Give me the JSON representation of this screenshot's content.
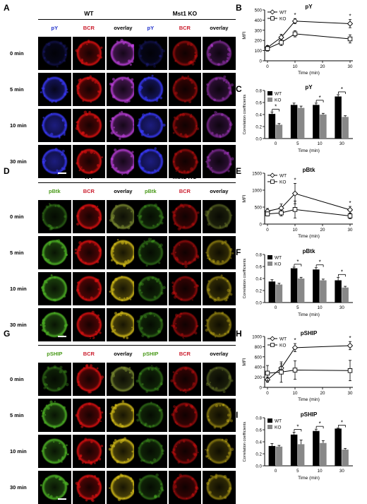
{
  "panels": [
    {
      "letter": "A",
      "groups": [
        {
          "title": "WT",
          "cols": [
            "pY",
            "BCR",
            "overlay"
          ]
        },
        {
          "title": "Mst1 KO",
          "cols": [
            "pY",
            "BCR",
            "overlay"
          ]
        }
      ],
      "rows": [
        "0 min",
        "5 min",
        "10 min",
        "30 min"
      ],
      "stain_color": "#3a3aff"
    },
    {
      "letter": "D",
      "groups": [
        {
          "title": "WT",
          "cols": [
            "pBtk",
            "BCR",
            "overlay"
          ]
        },
        {
          "title": "Mst1 KO",
          "cols": [
            "pBtk",
            "BCR",
            "overlay"
          ]
        }
      ],
      "rows": [
        "0 min",
        "5 min",
        "10 min",
        "30 min"
      ],
      "stain_color": "#4caf24"
    },
    {
      "letter": "G",
      "groups": [
        {
          "title": "WT",
          "cols": [
            "pSHIP",
            "BCR",
            "overlay"
          ]
        },
        {
          "title": "Mst1 KO",
          "cols": [
            "pSHIP",
            "BCR",
            "overlay"
          ]
        }
      ],
      "rows": [
        "0 min",
        "5 min",
        "10 min",
        "30 min"
      ],
      "stain_color": "#4caf24"
    }
  ],
  "colors": {
    "header_blue": "#2233cc",
    "header_green": "#4a9a1a",
    "header_red": "#cc1f2f",
    "bcr_red": "#e01010",
    "wt_bar": "#000000",
    "ko_bar": "#888888"
  },
  "chart_data": [
    {
      "letter": "B",
      "type": "line",
      "title": "pY",
      "xlabel": "Time (min)",
      "ylabel": "MFI",
      "x": [
        0,
        5,
        10,
        30
      ],
      "xlim": [
        0,
        30
      ],
      "ylim": [
        0,
        500
      ],
      "xticks": [
        "0",
        "10",
        "20",
        "30"
      ],
      "yticks": [
        "0",
        "100",
        "200",
        "300",
        "400",
        "500"
      ],
      "legend": [
        "WT",
        "KO"
      ],
      "series": [
        {
          "name": "WT",
          "values": [
            130,
            230,
            390,
            365
          ],
          "errors": [
            20,
            30,
            25,
            40
          ],
          "marker": "diamond"
        },
        {
          "name": "KO",
          "values": [
            120,
            180,
            265,
            215
          ],
          "errors": [
            25,
            30,
            30,
            40
          ],
          "marker": "square"
        }
      ],
      "stars": [
        "*",
        "*"
      ]
    },
    {
      "letter": "C",
      "type": "bar",
      "title": "pY",
      "xlabel": "Time (min)",
      "ylabel": "Correlation coefficients",
      "categories": [
        "0",
        "5",
        "10",
        "30"
      ],
      "ylim": [
        0,
        0.8
      ],
      "yticks": [
        "0.0",
        "0.2",
        "0.4",
        "0.6",
        "0.8"
      ],
      "legend": [
        "WT",
        "KO"
      ],
      "series": [
        {
          "name": "WT",
          "values": [
            0.41,
            0.56,
            0.56,
            0.7
          ],
          "errors": [
            0.03,
            0.03,
            0.03,
            0.03
          ]
        },
        {
          "name": "KO",
          "values": [
            0.23,
            0.51,
            0.4,
            0.36
          ],
          "errors": [
            0.02,
            0.03,
            0.02,
            0.02
          ]
        }
      ],
      "stars": [
        "*",
        "*",
        "*"
      ]
    },
    {
      "letter": "E",
      "type": "line",
      "title": "pBtk",
      "xlabel": "Time (min)",
      "ylabel": "MFI",
      "x": [
        0,
        5,
        10,
        30
      ],
      "xlim": [
        0,
        30
      ],
      "ylim": [
        0,
        1500
      ],
      "xticks": [
        "0",
        "10",
        "20",
        "30"
      ],
      "yticks": [
        "0",
        "500",
        "1000",
        "1500"
      ],
      "legend": [
        "WT",
        "KO"
      ],
      "series": [
        {
          "name": "WT",
          "values": [
            380,
            470,
            900,
            420
          ],
          "errors": [
            80,
            120,
            300,
            100
          ],
          "marker": "diamond"
        },
        {
          "name": "KO",
          "values": [
            300,
            330,
            430,
            240
          ],
          "errors": [
            60,
            90,
            250,
            80
          ],
          "marker": "square"
        }
      ],
      "stars": [
        "*",
        "*"
      ]
    },
    {
      "letter": "F",
      "type": "bar",
      "title": "pBtk",
      "xlabel": "Time (min)",
      "ylabel": "Correlation coefficients",
      "categories": [
        "0",
        "5",
        "10",
        "30"
      ],
      "ylim": [
        0,
        0.8
      ],
      "yticks": [
        "0.0",
        "0.2",
        "0.4",
        "0.6",
        "0.8"
      ],
      "legend": [
        "WT",
        "KO"
      ],
      "series": [
        {
          "name": "WT",
          "values": [
            0.35,
            0.57,
            0.55,
            0.37
          ],
          "errors": [
            0.03,
            0.02,
            0.03,
            0.05
          ]
        },
        {
          "name": "KO",
          "values": [
            0.3,
            0.4,
            0.37,
            0.25
          ],
          "errors": [
            0.02,
            0.02,
            0.02,
            0.02
          ]
        }
      ],
      "stars": [
        "*",
        "*",
        "*"
      ]
    },
    {
      "letter": "H",
      "type": "line",
      "title": "pSHIP",
      "xlabel": "Time (min)",
      "ylabel": "MFI",
      "x": [
        0,
        5,
        10,
        30
      ],
      "xlim": [
        0,
        30
      ],
      "ylim": [
        0,
        1000
      ],
      "xticks": [
        "0",
        "10",
        "20",
        "30"
      ],
      "yticks": [
        "0",
        "200",
        "400",
        "600",
        "800",
        "1000"
      ],
      "legend": [
        "WT",
        "KO"
      ],
      "series": [
        {
          "name": "WT",
          "values": [
            150,
            380,
            780,
            820
          ],
          "errors": [
            50,
            80,
            80,
            80
          ],
          "marker": "diamond"
        },
        {
          "name": "KO",
          "values": [
            280,
            300,
            340,
            330
          ],
          "errors": [
            150,
            200,
            180,
            200
          ],
          "marker": "square"
        }
      ],
      "stars": [
        "*",
        "*"
      ]
    },
    {
      "letter": "I",
      "type": "bar",
      "title": "pSHIP",
      "xlabel": "Time (min)",
      "ylabel": "Correlation coefficients",
      "categories": [
        "0",
        "5",
        "10",
        "30"
      ],
      "ylim": [
        0,
        0.8
      ],
      "yticks": [
        "0.0",
        "0.2",
        "0.4",
        "0.6",
        "0.8"
      ],
      "legend": [
        "WT",
        "KO"
      ],
      "series": [
        {
          "name": "WT",
          "values": [
            0.33,
            0.52,
            0.58,
            0.62
          ],
          "errors": [
            0.04,
            0.04,
            0.03,
            0.01
          ]
        },
        {
          "name": "KO",
          "values": [
            0.32,
            0.36,
            0.38,
            0.27
          ],
          "errors": [
            0.02,
            0.07,
            0.04,
            0.02
          ]
        }
      ],
      "stars": [
        "*",
        "*",
        "*"
      ]
    }
  ]
}
